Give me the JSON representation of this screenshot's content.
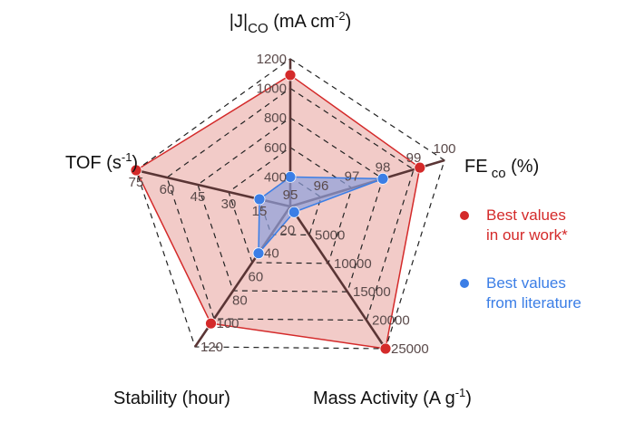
{
  "chart_data": {
    "type": "radar",
    "axes": [
      {
        "key": "J",
        "label_main": "|J|",
        "label_sub": "CO",
        "label_rest": " (mA cm",
        "label_sup": "-2",
        "label_end": ")",
        "range": [
          200,
          1200
        ],
        "ticks": [
          "400",
          "600",
          "800",
          "1000",
          "1200"
        ]
      },
      {
        "key": "FE",
        "label_main": "FE",
        "label_sub": " co",
        "label_rest": " (%)",
        "label_sup": "",
        "label_end": "",
        "range": [
          95,
          100
        ],
        "ticks": [
          "95",
          "96",
          "97",
          "98",
          "99",
          "100"
        ]
      },
      {
        "key": "MA",
        "label_main": "Mass Activity (A g",
        "label_sub": "",
        "label_rest": "",
        "label_sup": "-1",
        "label_end": ")",
        "range": [
          0,
          25000
        ],
        "ticks": [
          "5000",
          "10000",
          "15000",
          "20000",
          "25000"
        ]
      },
      {
        "key": "ST",
        "label_main": "Stability (hour)",
        "label_sub": "",
        "label_rest": "",
        "label_sup": "",
        "label_end": "",
        "range": [
          0,
          120
        ],
        "ticks": [
          "20",
          "40",
          "60",
          "80",
          "100",
          "120"
        ]
      },
      {
        "key": "TOF",
        "label_main": "TOF (s",
        "label_sub": "",
        "label_rest": "",
        "label_sup": "-1",
        "label_end": ")",
        "range": [
          0,
          75
        ],
        "ticks": [
          "15",
          "30",
          "45",
          "60",
          "75"
        ]
      }
    ],
    "series": [
      {
        "name": "Best values in our work*",
        "values": [
          1090,
          99.2,
          25000,
          100,
          75
        ],
        "color": "#d42a2a",
        "fill": "#f0c2be"
      },
      {
        "name": "Best values from literature",
        "values": [
          400,
          98,
          1000,
          40,
          15
        ],
        "color": "#3b7ee6",
        "fill": "#8d9fdc"
      }
    ],
    "legend": {
      "position": "right",
      "lines": [
        [
          "Best values",
          "in our work*"
        ],
        [
          "Best values",
          "from literature"
        ]
      ]
    },
    "grid": true
  }
}
